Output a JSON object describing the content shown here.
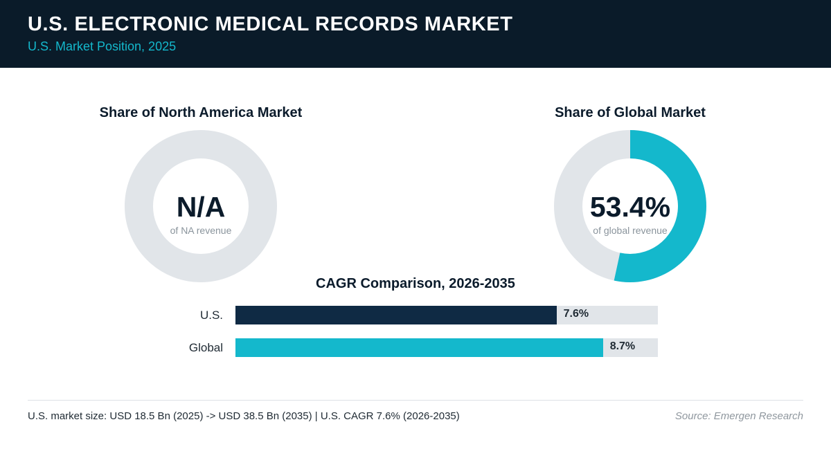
{
  "header": {
    "title": "U.S. ELECTRONIC MEDICAL RECORDS MARKET",
    "subtitle": "U.S. Market Position, 2025"
  },
  "colors": {
    "header_bg": "#0a1b29",
    "accent": "#14b8cc",
    "navy": "#0f2a44",
    "track": "#e1e5e9"
  },
  "chart_data": [
    {
      "type": "pie",
      "title": "Share of North America Market",
      "center_value": "N/A",
      "center_caption": "of NA revenue",
      "value": null,
      "colors": [
        "#14b8cc",
        "#e1e5e9"
      ]
    },
    {
      "type": "pie",
      "title": "Share of Global Market",
      "center_value": "53.4%",
      "center_caption": "of global revenue",
      "value": 53.4,
      "colors": [
        "#14b8cc",
        "#e1e5e9"
      ]
    },
    {
      "type": "bar",
      "orientation": "horizontal",
      "title": "CAGR Comparison, 2026-2035",
      "categories": [
        "U.S.",
        "Global"
      ],
      "values": [
        7.6,
        8.7
      ],
      "value_labels": [
        "7.6%",
        "8.7%"
      ],
      "colors": [
        "#0f2a44",
        "#14b8cc"
      ],
      "xlim": [
        0,
        10
      ]
    }
  ],
  "footer": {
    "note": "U.S. market size: USD 18.5 Bn (2025) -> USD 38.5 Bn (2035)  |  U.S. CAGR 7.6% (2026-2035)",
    "source": "Source: Emergen Research"
  }
}
